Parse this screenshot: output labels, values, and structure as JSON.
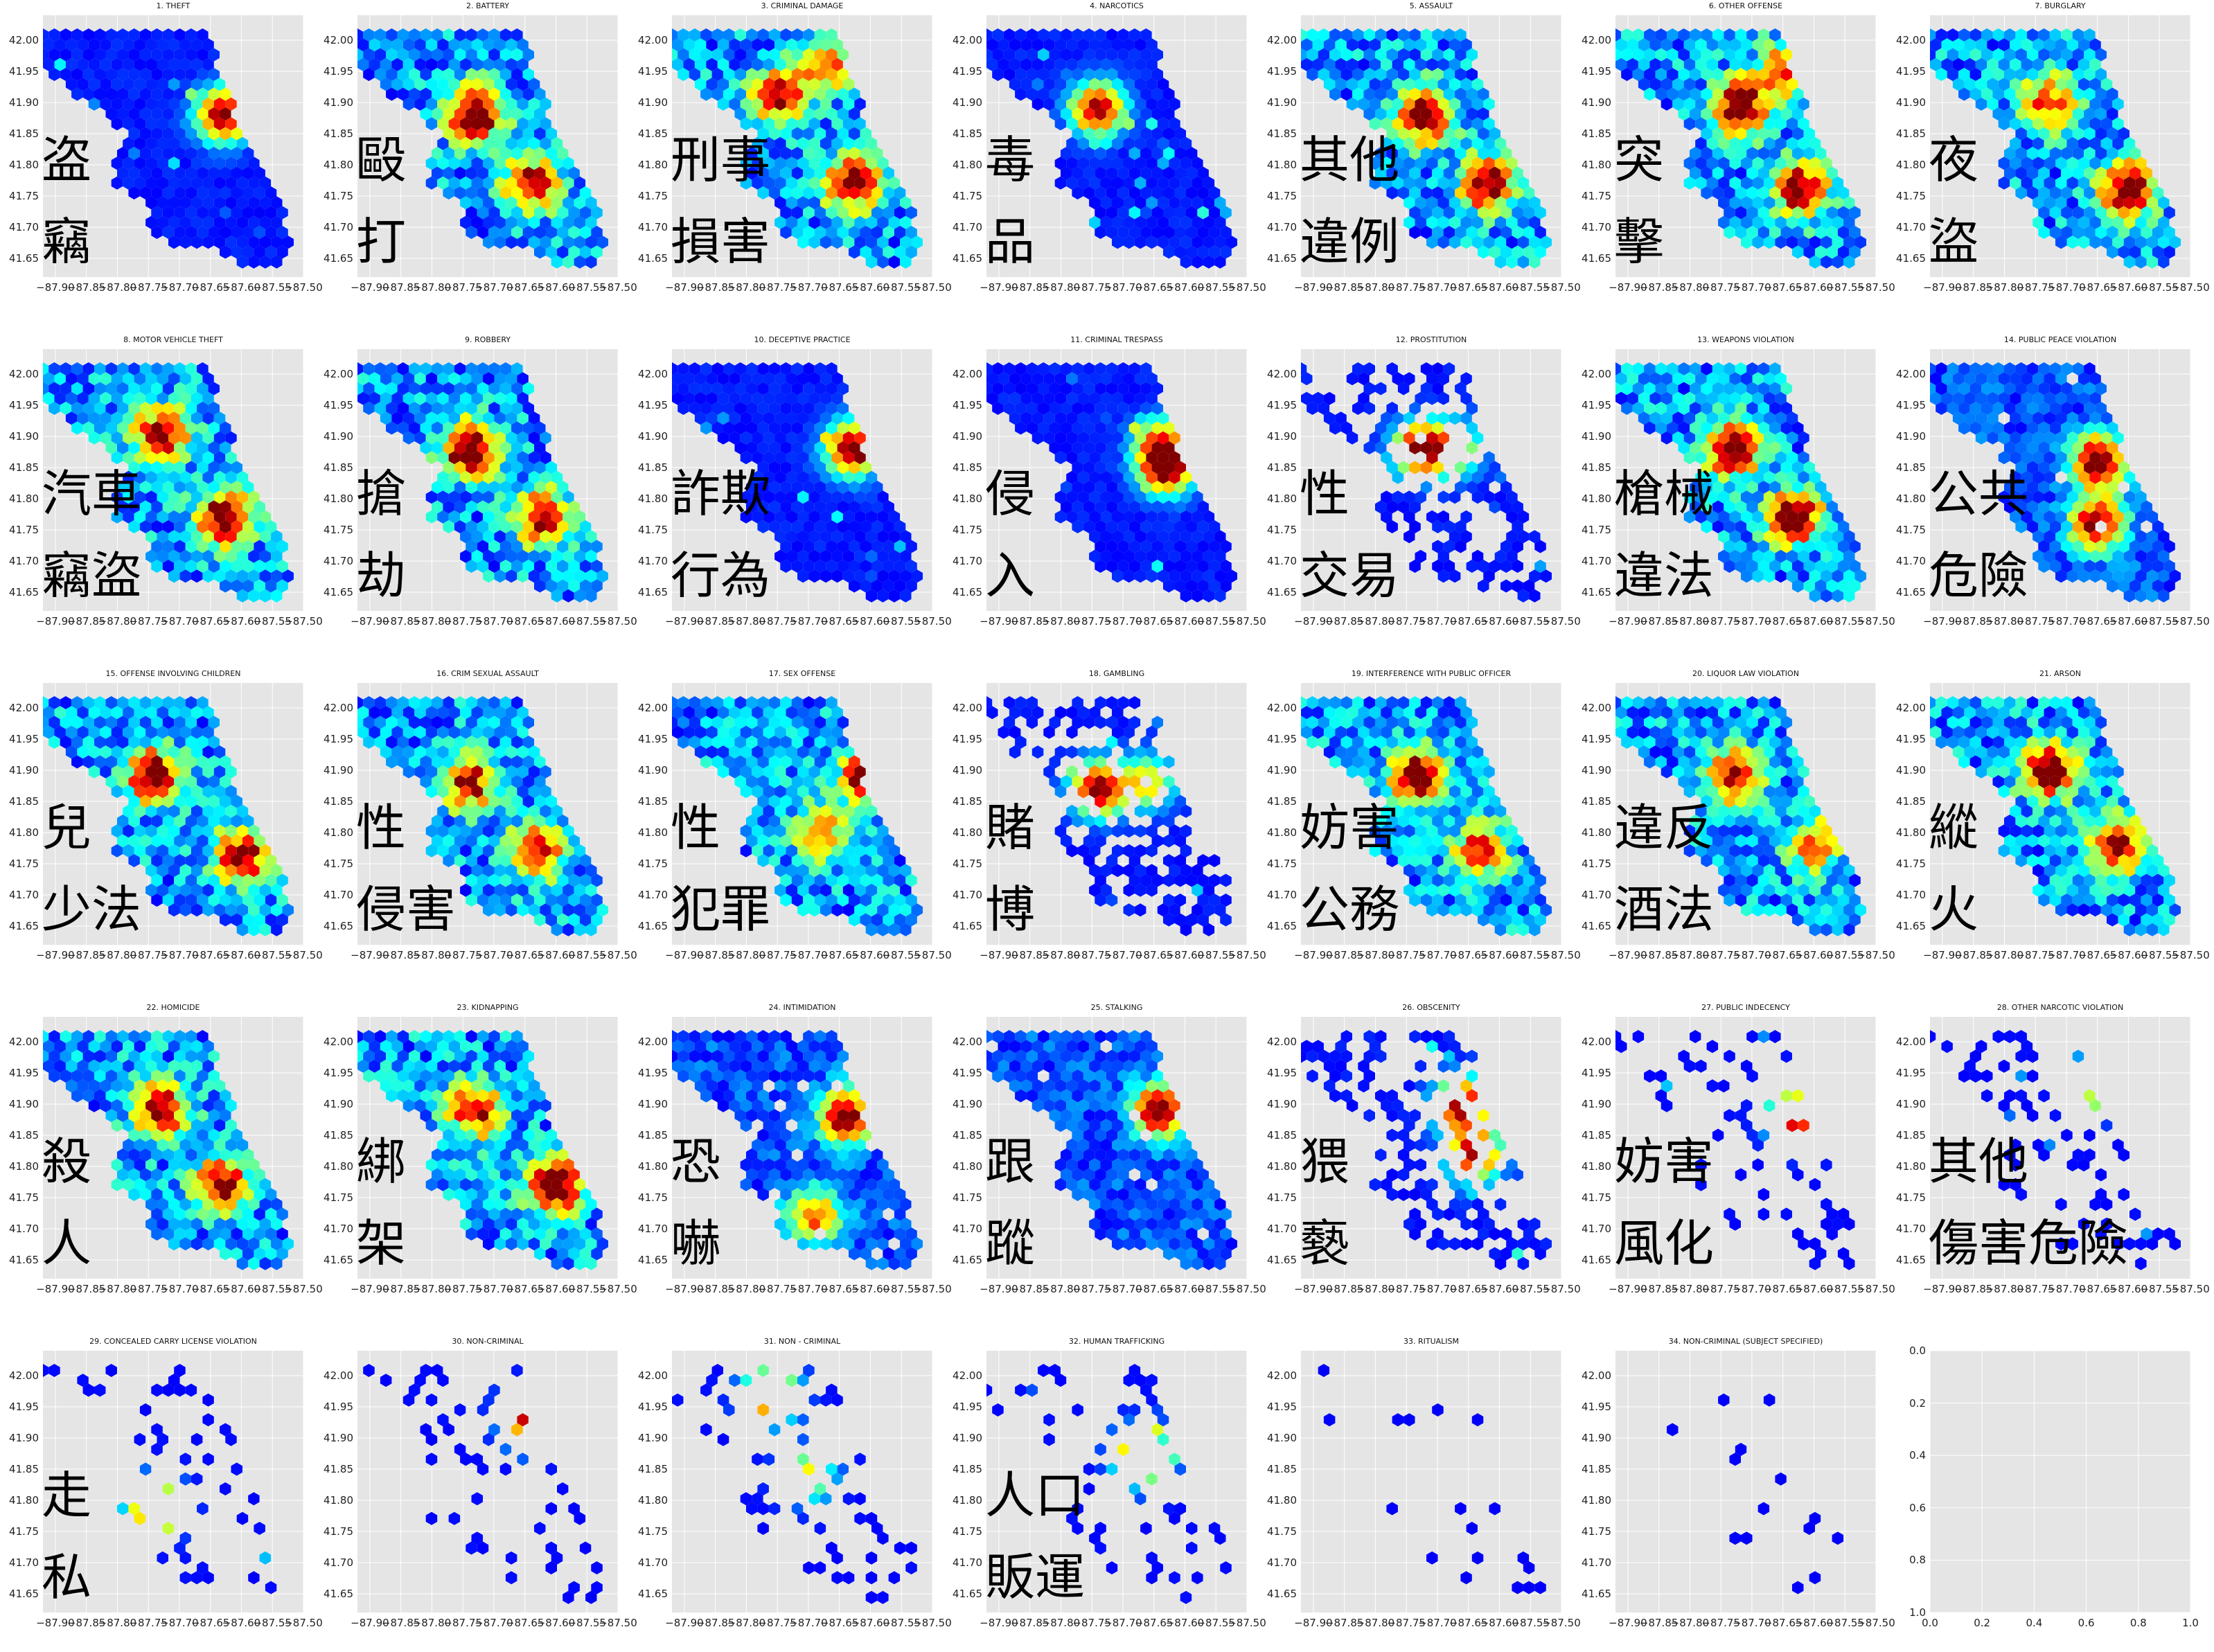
{
  "chart_data": {
    "type": "heatmap",
    "subtype": "hexbin",
    "layout": "5 rows x 7 columns of small multiples",
    "ytick_labels": [
      "42.00",
      "41.95",
      "41.90",
      "41.85",
      "41.80",
      "41.75",
      "41.70",
      "41.65"
    ],
    "xtick_labels": [
      "−87.90",
      "−87.85",
      "−87.80",
      "−87.75",
      "−87.70",
      "−87.65",
      "−87.60",
      "−87.55",
      "−87.50"
    ],
    "ylim": [
      41.62,
      42.04
    ],
    "xlim": [
      -87.92,
      -87.5
    ],
    "colormap": "jet",
    "grid": true,
    "panels": [
      {
        "title": "1. THEFT",
        "label": [
          "盗",
          "竊"
        ],
        "density": "low",
        "hotspots": [
          [
            -87.63,
            41.88,
            1.0
          ]
        ]
      },
      {
        "title": "2. BATTERY",
        "label": [
          "毆",
          "打"
        ],
        "density": "high",
        "hotspots": [
          [
            -87.73,
            41.88,
            1.0
          ],
          [
            -87.64,
            41.77,
            0.8
          ]
        ]
      },
      {
        "title": "3. CRIMINAL DAMAGE",
        "label": [
          "刑事",
          "損害"
        ],
        "density": "high",
        "hotspots": [
          [
            -87.75,
            41.91,
            0.8
          ],
          [
            -87.63,
            41.77,
            0.9
          ],
          [
            -87.67,
            41.96,
            0.6
          ]
        ]
      },
      {
        "title": "4. NARCOTICS",
        "label": [
          "毒",
          "品"
        ],
        "density": "low",
        "hotspots": [
          [
            -87.74,
            41.89,
            0.95
          ]
        ]
      },
      {
        "title": "5. ASSAULT",
        "label": [
          "其他",
          "違例"
        ],
        "density": "high",
        "hotspots": [
          [
            -87.72,
            41.88,
            1.0
          ],
          [
            -87.62,
            41.77,
            0.9
          ]
        ]
      },
      {
        "title": "6. OTHER OFFENSE",
        "label": [
          "突",
          "擊"
        ],
        "density": "high",
        "hotspots": [
          [
            -87.72,
            41.89,
            1.0
          ],
          [
            -87.62,
            41.76,
            0.9
          ],
          [
            -87.65,
            41.95,
            0.6
          ]
        ]
      },
      {
        "title": "7. BURGLARY",
        "label": [
          "夜",
          "盜"
        ],
        "density": "high",
        "hotspots": [
          [
            -87.73,
            41.9,
            0.7
          ],
          [
            -87.6,
            41.76,
            1.0
          ]
        ]
      },
      {
        "title": "8. MOTOR VEHICLE THEFT",
        "label": [
          "汽車",
          "竊盜"
        ],
        "density": "high",
        "hotspots": [
          [
            -87.73,
            41.9,
            0.9
          ],
          [
            -87.63,
            41.77,
            0.95
          ]
        ]
      },
      {
        "title": "9. ROBBERY",
        "label": [
          "搶",
          "劫"
        ],
        "density": "high",
        "hotspots": [
          [
            -87.74,
            41.88,
            1.0
          ],
          [
            -87.62,
            41.77,
            0.85
          ]
        ]
      },
      {
        "title": "10. DECEPTIVE PRACTICE",
        "label": [
          "詐欺",
          "行為"
        ],
        "density": "low",
        "hotspots": [
          [
            -87.63,
            41.88,
            1.0
          ]
        ]
      },
      {
        "title": "11. CRIMINAL TRESPASS",
        "label": [
          "侵",
          "入"
        ],
        "density": "low",
        "hotspots": [
          [
            -87.63,
            41.85,
            1.0
          ],
          [
            -87.64,
            41.89,
            0.6
          ]
        ]
      },
      {
        "title": "12. PROSTITUTION",
        "label": [
          "性",
          "交易"
        ],
        "density": "sparse",
        "hotspots": [
          [
            -87.73,
            41.88,
            1.0
          ],
          [
            -87.67,
            41.88,
            0.6
          ]
        ]
      },
      {
        "title": "13. WEAPONS VIOLATION",
        "label": [
          "槍械",
          "違法"
        ],
        "density": "high",
        "hotspots": [
          [
            -87.73,
            41.88,
            1.0
          ],
          [
            -87.63,
            41.77,
            0.95
          ]
        ]
      },
      {
        "title": "14. PUBLIC PEACE VIOLATION",
        "label": [
          "公共",
          "危險"
        ],
        "density": "medium",
        "hotspots": [
          [
            -87.65,
            41.86,
            1.0
          ],
          [
            -87.65,
            41.76,
            0.95
          ]
        ]
      },
      {
        "title": "15. OFFENSE INVOLVING CHILDREN",
        "label": [
          "兒",
          "少法"
        ],
        "density": "high",
        "hotspots": [
          [
            -87.74,
            41.89,
            1.0
          ],
          [
            -87.6,
            41.76,
            0.9
          ]
        ]
      },
      {
        "title": "16. CRIM SEXUAL ASSAULT",
        "label": [
          "性",
          "侵害"
        ],
        "density": "high",
        "hotspots": [
          [
            -87.74,
            41.88,
            0.8
          ],
          [
            -87.63,
            41.77,
            0.8
          ]
        ]
      },
      {
        "title": "17. SEX OFFENSE",
        "label": [
          "性",
          "犯罪"
        ],
        "density": "high",
        "hotspots": [
          [
            -87.6,
            41.89,
            1.0
          ],
          [
            -87.68,
            41.8,
            0.6
          ]
        ]
      },
      {
        "title": "18. GAMBLING",
        "label": [
          "賭",
          "博"
        ],
        "density": "sparse",
        "hotspots": [
          [
            -87.74,
            41.87,
            1.0
          ],
          [
            -87.66,
            41.88,
            0.6
          ]
        ]
      },
      {
        "title": "19. INTERFERENCE WITH PUBLIC OFFICER",
        "label": [
          "妨害",
          "公務"
        ],
        "density": "high",
        "hotspots": [
          [
            -87.73,
            41.89,
            1.0
          ],
          [
            -87.63,
            41.77,
            0.7
          ]
        ]
      },
      {
        "title": "20. LIQUOR LAW VIOLATION",
        "label": [
          "違反",
          "酒法"
        ],
        "density": "high",
        "hotspots": [
          [
            -87.73,
            41.89,
            0.8
          ],
          [
            -87.6,
            41.78,
            0.6
          ]
        ]
      },
      {
        "title": "21. ARSON",
        "label": [
          "縱",
          "火"
        ],
        "density": "high",
        "hotspots": [
          [
            -87.73,
            41.9,
            1.0
          ],
          [
            -87.62,
            41.78,
            0.9
          ]
        ]
      },
      {
        "title": "22. HOMICIDE",
        "label": [
          "殺",
          "人"
        ],
        "density": "high",
        "hotspots": [
          [
            -87.73,
            41.89,
            0.9
          ],
          [
            -87.63,
            41.77,
            0.85
          ]
        ]
      },
      {
        "title": "23. KIDNAPPING",
        "label": [
          "綁",
          "架"
        ],
        "density": "high",
        "hotspots": [
          [
            -87.73,
            41.89,
            0.8
          ],
          [
            -87.6,
            41.77,
            1.0
          ]
        ]
      },
      {
        "title": "24. INTIMIDATION",
        "label": [
          "恐",
          "嚇"
        ],
        "density": "medium",
        "hotspots": [
          [
            -87.64,
            41.88,
            1.0
          ],
          [
            -87.69,
            41.72,
            0.7
          ]
        ]
      },
      {
        "title": "25. STALKING",
        "label": [
          "跟",
          "蹤"
        ],
        "density": "medium",
        "hotspots": [
          [
            -87.64,
            41.89,
            1.0
          ]
        ]
      },
      {
        "title": "26. OBSCENITY",
        "label": [
          "猥",
          "褻"
        ],
        "density": "sparse",
        "hotspots": [
          [
            -87.66,
            41.9,
            1.0
          ],
          [
            -87.64,
            41.82,
            0.95
          ]
        ]
      },
      {
        "title": "27. PUBLIC INDECENCY",
        "label": [
          "妨害",
          "風化"
        ],
        "density": "very-sparse",
        "hotspots": [
          [
            -87.63,
            41.88,
            1.0
          ]
        ]
      },
      {
        "title": "28. OTHER NARCOTIC VIOLATION",
        "label": [
          "其他",
          "傷害危險"
        ],
        "density": "very-sparse",
        "hotspots": [
          [
            -87.64,
            41.94,
            0.95
          ]
        ]
      },
      {
        "title": "29. CONCEALED CARRY LICENSE VIOLATION",
        "label": [
          "走",
          "私"
        ],
        "density": "very-sparse",
        "hotspots": [
          [
            -87.74,
            41.79,
            1.0
          ]
        ]
      },
      {
        "title": "30. NON-CRIMINAL",
        "label": [],
        "density": "very-sparse",
        "hotspots": [
          [
            -87.64,
            41.93,
            1.0
          ]
        ]
      },
      {
        "title": "31. NON - CRIMINAL",
        "label": [],
        "density": "very-sparse",
        "hotspots": [
          [
            -87.76,
            41.97,
            1.0
          ],
          [
            -87.7,
            41.84,
            0.6
          ]
        ]
      },
      {
        "title": "32. HUMAN TRAFFICKING",
        "label": [
          "人口",
          "販運"
        ],
        "density": "very-sparse",
        "hotspots": [
          [
            -87.67,
            41.87,
            1.0
          ]
        ]
      },
      {
        "title": "33. RITUALISM",
        "label": [],
        "density": "minimal",
        "hotspots": []
      },
      {
        "title": "34. NON-CRIMINAL (SUBJECT SPECIFIED)",
        "label": [],
        "density": "minimal",
        "hotspots": []
      },
      {
        "title": "",
        "label": [],
        "density": "empty",
        "hotspots": []
      }
    ],
    "empty_panel": {
      "yticks": [
        "0.0",
        "0.2",
        "0.4",
        "0.6",
        "0.8",
        "1.0"
      ],
      "xticks": [
        "0.0",
        "0.2",
        "0.4",
        "0.6",
        "0.8",
        "1.0"
      ]
    }
  }
}
